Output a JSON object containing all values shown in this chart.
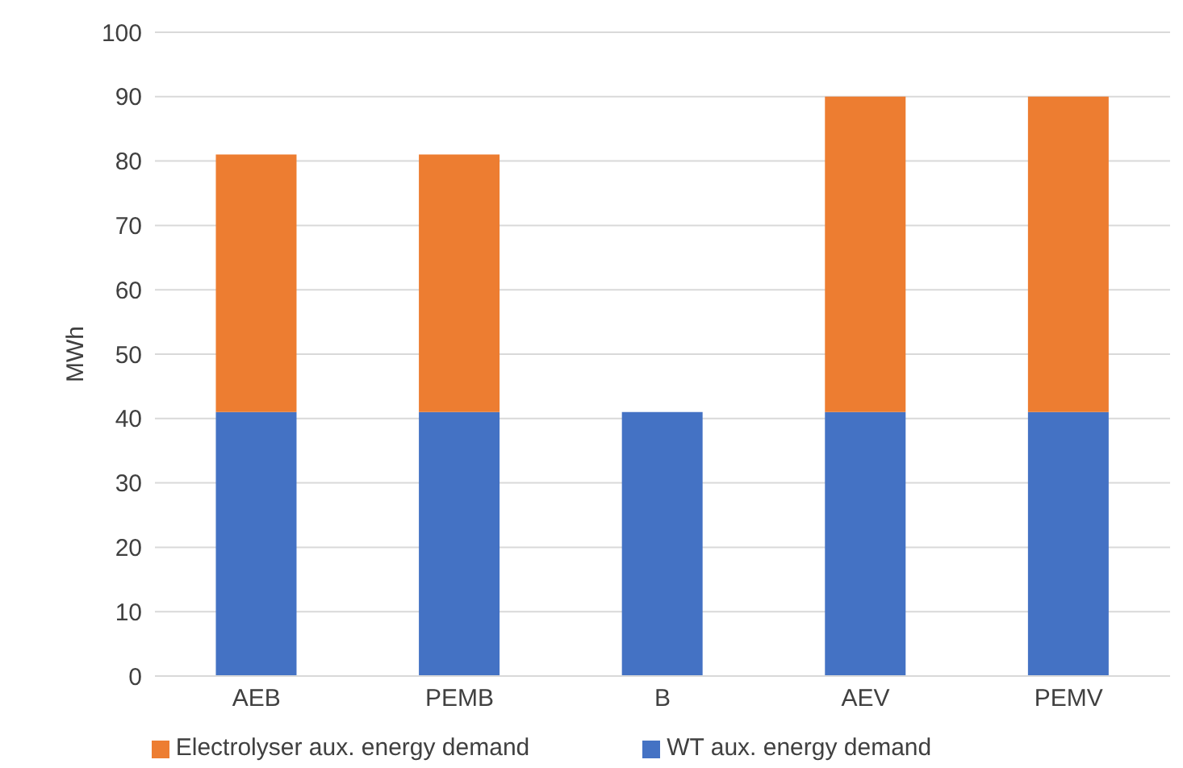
{
  "chart_data": {
    "type": "bar",
    "stacked": true,
    "ylabel": "MWh",
    "categories": [
      "AEB",
      "PEMB",
      "B",
      "AEV",
      "PEMV"
    ],
    "series": [
      {
        "name": "WT aux. energy demand",
        "color": "#4472c4",
        "values": [
          41,
          41,
          41,
          41,
          41
        ]
      },
      {
        "name": "Electrolyser aux. energy demand",
        "color": "#ed7d31",
        "values": [
          40,
          40,
          null,
          49,
          49
        ]
      }
    ],
    "ylim": [
      0,
      100
    ],
    "yticks": [
      0,
      10,
      20,
      30,
      40,
      50,
      60,
      70,
      80,
      90,
      100
    ],
    "grid": "y",
    "legend": "bottom"
  }
}
